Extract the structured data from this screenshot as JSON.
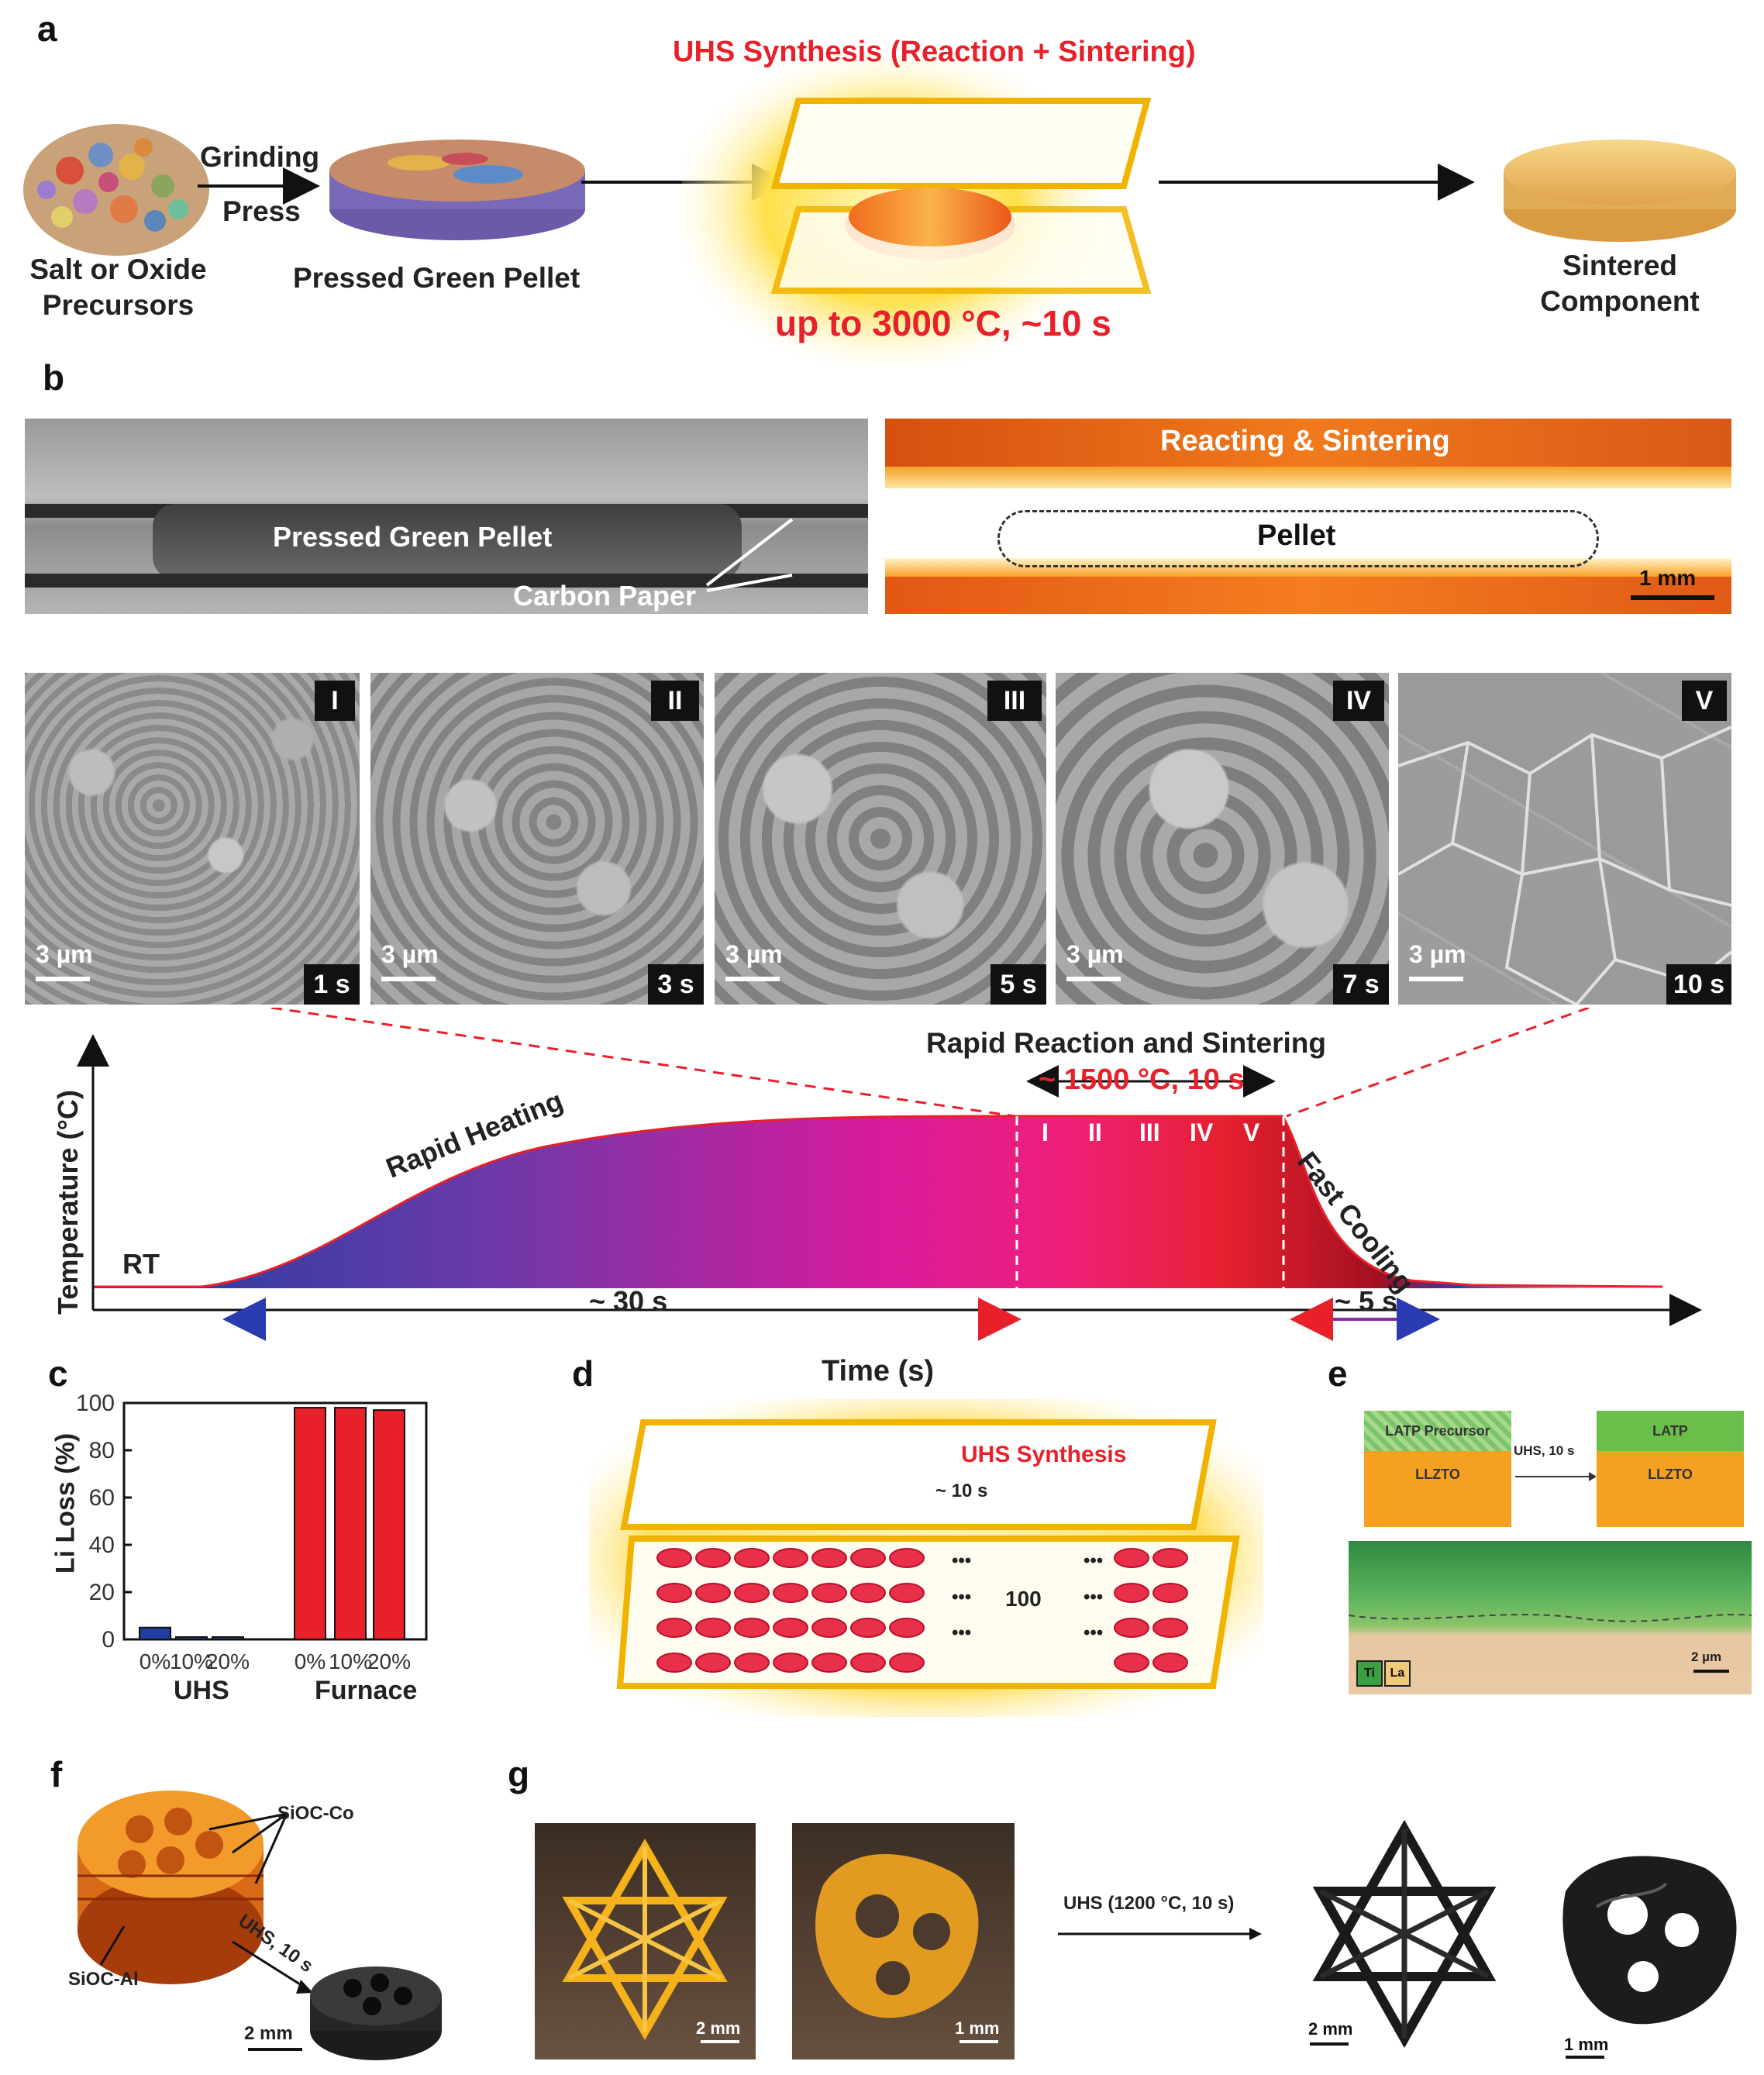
{
  "panel_letters": {
    "a": "a",
    "b": "b",
    "c": "c",
    "d": "d",
    "e": "e",
    "f": "f",
    "g": "g"
  },
  "panel_a": {
    "precursor_label_1": "Salt or Oxide",
    "precursor_label_2": "Precursors",
    "arrow_label_1": "Grinding",
    "arrow_label_2": "Press",
    "pellet_label": "Pressed Green Pellet",
    "uhs_title": "UHS Synthesis (Reaction + Sintering)",
    "uhs_condition": "up to  3000 °C, ~10 s",
    "product_label_1": "Sintered",
    "product_label_2": "Component"
  },
  "panel_b": {
    "photo_left_label": "Pressed Green Pellet",
    "photo_left_callout": "Carbon Paper",
    "photo_right_title": "Reacting & Sintering",
    "photo_right_label": "Pellet",
    "photo_right_scalebar": "1 mm",
    "sem": [
      {
        "stage": "I",
        "time": "1 s",
        "scalebar": "3 µm"
      },
      {
        "stage": "II",
        "time": "3 s",
        "scalebar": "3 µm"
      },
      {
        "stage": "III",
        "time": "5 s",
        "scalebar": "3 µm"
      },
      {
        "stage": "IV",
        "time": "7 s",
        "scalebar": "3 µm"
      },
      {
        "stage": "V",
        "time": "10 s",
        "scalebar": "3 µm"
      }
    ],
    "profile": {
      "ylabel": "Temperature (°C)",
      "xlabel": "Time (s)",
      "rt_label": "RT",
      "heating_label": "Rapid Heating",
      "heating_duration": "~ 30 s",
      "hold_title": "Rapid Reaction and Sintering",
      "hold_condition": "~ 1500 °C, 10 s",
      "stages": [
        "I",
        "II",
        "III",
        "IV",
        "V"
      ],
      "cooling_label": "Fast Cooling",
      "cooling_duration": "~ 5 s"
    }
  },
  "panel_c": {
    "chart_data": {
      "type": "bar",
      "ylabel": "Li Loss (%)",
      "ylim": [
        0,
        100
      ],
      "yticks": [
        "0",
        "20",
        "40",
        "60",
        "80",
        "100"
      ],
      "categories": [
        "0%",
        "10%",
        "20%",
        "0%",
        "10%",
        "20%"
      ],
      "groups": [
        "UHS",
        "Furnace"
      ],
      "values": [
        5,
        1,
        1,
        98,
        98,
        97
      ],
      "colors": [
        "#1f3ea0",
        "#1f3ea0",
        "#1f3ea0",
        "#e8202a",
        "#e8202a",
        "#e8202a"
      ]
    }
  },
  "panel_d": {
    "title": "UHS Synthesis",
    "duration": "~ 10 s",
    "count": "100",
    "ellipsis": "•••"
  },
  "panel_e": {
    "before_top": "LATP Precursor",
    "before_bottom": "LLZTO",
    "arrow_label": "UHS, 10 s",
    "after_top": "LATP",
    "after_bottom": "LLZTO",
    "legend_ti": "Ti",
    "legend_la": "La",
    "scalebar": "2 µm"
  },
  "panel_f": {
    "label_co": "SiOC-Co",
    "label_al": "SiOC-Al",
    "arrow_label": "UHS, 10 s",
    "scalebar": "2 mm"
  },
  "panel_g": {
    "scalebar_1": "2 mm",
    "scalebar_2": "1 mm",
    "arrow_label": "UHS (1200 °C, 10 s)",
    "scalebar_3": "2 mm",
    "scalebar_4": "1 mm"
  }
}
